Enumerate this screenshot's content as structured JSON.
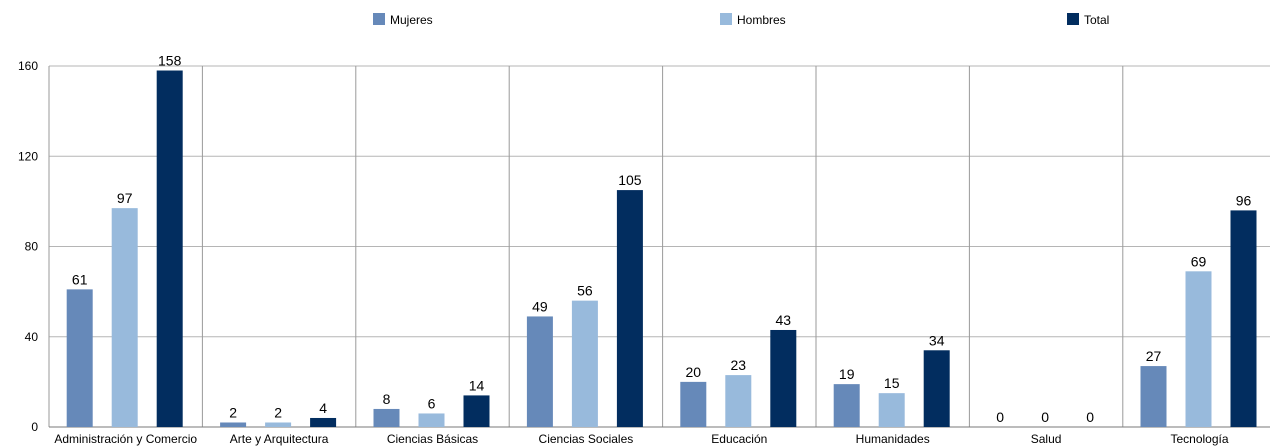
{
  "chart_data": {
    "type": "bar",
    "categories": [
      "Administración y Comercio",
      "Arte y Arquitectura",
      "Ciencias Básicas",
      "Ciencias Sociales",
      "Educación",
      "Humanidades",
      "Salud",
      "Tecnología"
    ],
    "series": [
      {
        "name": "Mujeres",
        "color": "#6689b9",
        "values": [
          61,
          2,
          8,
          49,
          20,
          19,
          0,
          27
        ]
      },
      {
        "name": "Hombres",
        "color": "#98badc",
        "values": [
          97,
          2,
          6,
          56,
          23,
          15,
          0,
          69
        ]
      },
      {
        "name": "Total",
        "color": "#022d5f",
        "values": [
          158,
          4,
          14,
          105,
          43,
          34,
          0,
          96
        ]
      }
    ],
    "yticks": [
      "0",
      "40",
      "80",
      "120",
      "160"
    ],
    "ylim": [
      0,
      160
    ],
    "grid": true,
    "legend": "top",
    "data_labels": true
  }
}
